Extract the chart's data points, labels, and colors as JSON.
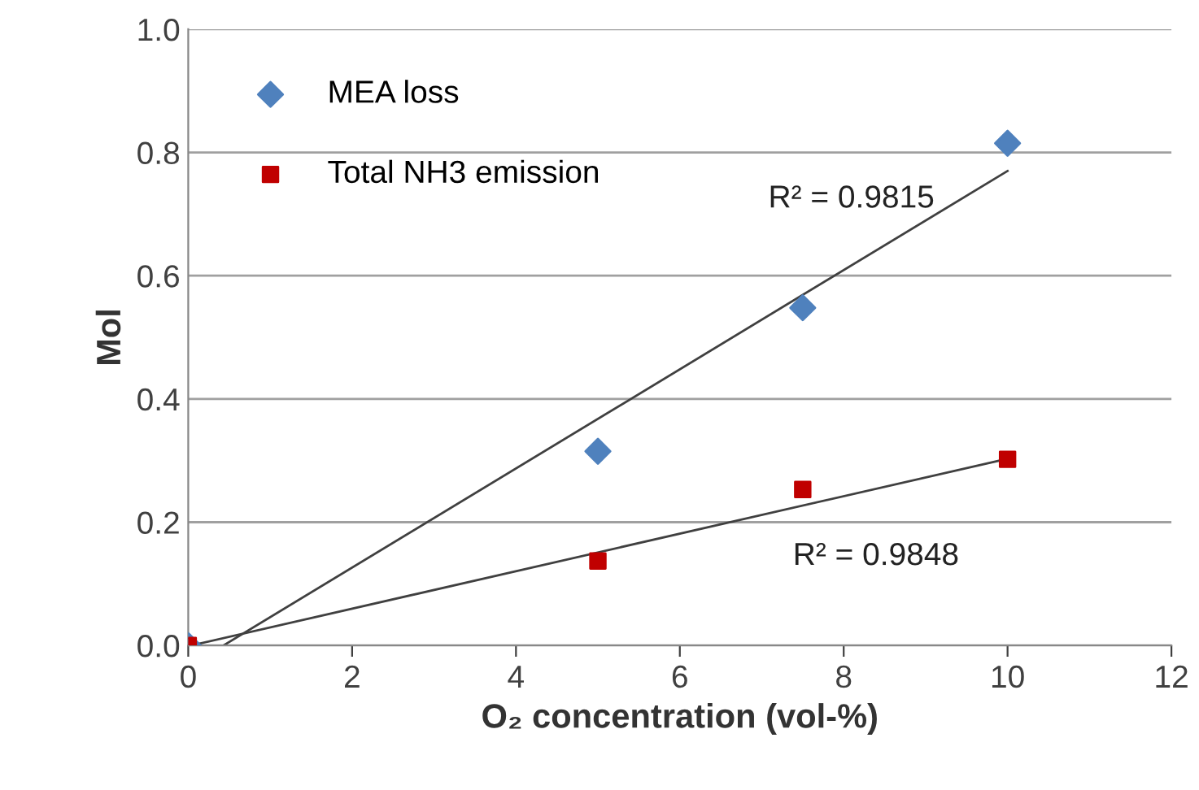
{
  "chart_data": {
    "type": "scatter",
    "xlabel": "O₂ concentration (vol-%)",
    "ylabel": "Mol",
    "xlim": [
      0,
      12
    ],
    "xticks": [
      0,
      2,
      4,
      6,
      8,
      10,
      12
    ],
    "ylim": [
      0,
      1.0
    ],
    "yticks": [
      {
        "value": 0,
        "label": "0.0"
      },
      {
        "value": 0.2,
        "label": "0.2"
      },
      {
        "value": 0.4,
        "label": "0.4"
      },
      {
        "value": 0.6,
        "label": "0.6"
      },
      {
        "value": 0.8,
        "label": "0.8"
      },
      {
        "value": 1.0,
        "label": "1.0"
      }
    ],
    "grid": "y",
    "legend": "top left",
    "series": [
      {
        "name": "MEA loss",
        "marker": "diamond",
        "color": "#4f81bd",
        "x": [
          0,
          5,
          7.5,
          10
        ],
        "values": [
          0,
          0.315,
          0.548,
          0.815
        ]
      },
      {
        "name": "Total NH3 emission",
        "marker": "square",
        "color": "#c00000",
        "x": [
          0,
          5,
          7.5,
          10
        ],
        "values": [
          0,
          0.137,
          0.253,
          0.302
        ]
      },
      {
        "type": "line",
        "color": "#404040",
        "x": [
          0.43,
          10
        ],
        "values": [
          0,
          0.77
        ]
      },
      {
        "type": "line",
        "color": "#404040",
        "x": [
          0.04,
          10
        ],
        "values": [
          0,
          0.303
        ]
      }
    ],
    "annotations": [
      "R² = 0.9815",
      "R² = 0.9848"
    ]
  }
}
